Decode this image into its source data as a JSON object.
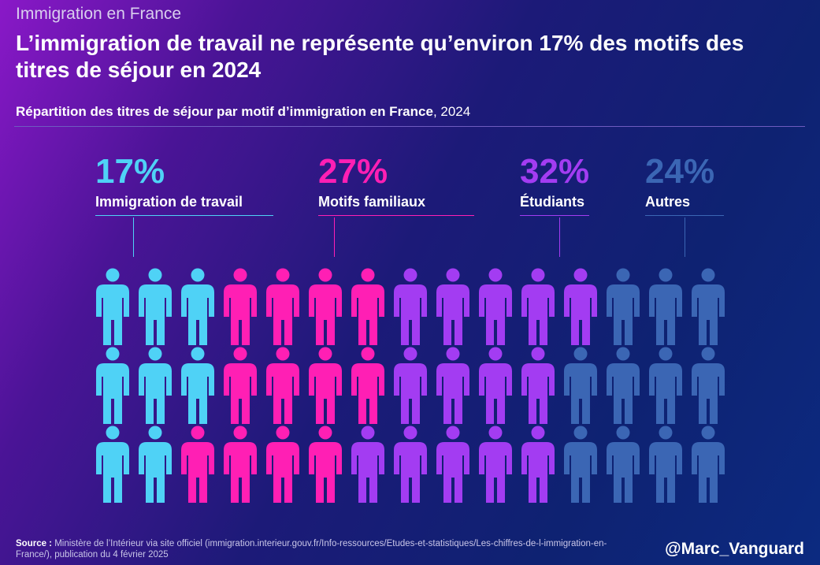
{
  "header": {
    "kicker": "Immigration en France",
    "title": "L’immigration de travail ne représente qu’environ 17% des motifs des titres de séjour en 2024",
    "subtitle_bold": "Répartition des titres de séjour par motif d’immigration en France",
    "subtitle_year": ", 2024"
  },
  "chart_data": {
    "type": "pictogram",
    "title": "Répartition des titres de séjour par motif d’immigration en France, 2024",
    "rows": 3,
    "icons_per_row": 15,
    "categories": [
      {
        "name": "Immigration de travail",
        "percent_label": "17%",
        "value": 17,
        "color": "#4fd2f6",
        "row_counts": [
          3,
          3,
          2
        ]
      },
      {
        "name": "Motifs familiaux",
        "percent_label": "27%",
        "value": 27,
        "color": "#ff1fb4",
        "row_counts": [
          4,
          4,
          4
        ]
      },
      {
        "name": "Étudiants",
        "percent_label": "32%",
        "value": 32,
        "color": "#a33cf2",
        "row_counts": [
          5,
          4,
          5
        ]
      },
      {
        "name": "Autres",
        "percent_label": "24%",
        "value": 24,
        "color": "#3b66b4",
        "row_counts": [
          3,
          4,
          4
        ]
      }
    ]
  },
  "footer": {
    "source_label": "Source :",
    "source_text": " Ministère de l’Intérieur via site officiel (immigration.interieur.gouv.fr/Info-ressources/Etudes-et-statistiques/Les-chiffres-de-l-immigration-en-France/), publication du 4 février 2025",
    "handle": "@Marc_Vanguard"
  }
}
